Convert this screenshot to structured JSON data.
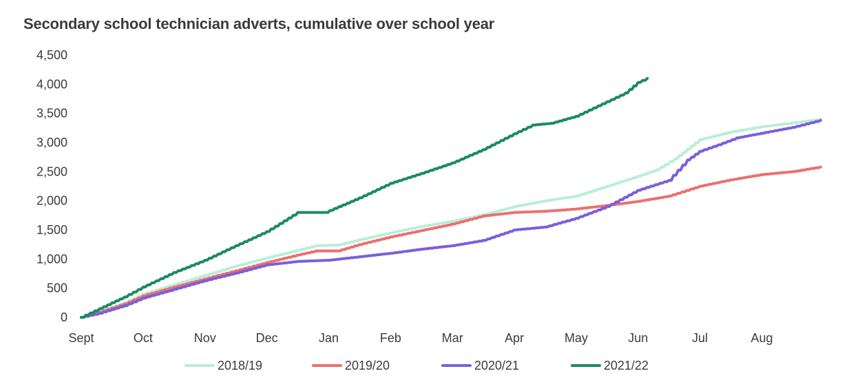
{
  "chart_data": {
    "type": "line",
    "title": "Secondary school technician adverts, cumulative over school year",
    "xlabel": "",
    "ylabel": "",
    "x_categories": [
      "Sept",
      "Oct",
      "Nov",
      "Dec",
      "Jan",
      "Feb",
      "Mar",
      "Apr",
      "May",
      "Jun",
      "Jul",
      "Aug"
    ],
    "x_tick_positions": [
      0,
      1,
      2,
      3,
      4,
      5,
      6,
      7,
      8,
      9,
      10,
      11
    ],
    "xlim": [
      0,
      11.95
    ],
    "ylim": [
      0,
      4500
    ],
    "y_ticks": [
      0,
      500,
      1000,
      1500,
      2000,
      2500,
      3000,
      3500,
      4000,
      4500
    ],
    "y_tick_labels": [
      "0",
      "500",
      "1,000",
      "1,500",
      "2,000",
      "2,500",
      "3,000",
      "3,500",
      "4,000",
      "4,500"
    ],
    "grid": false,
    "legend_position": "bottom",
    "series": [
      {
        "name": "2018/19",
        "color": "#b9eed8",
        "points": [
          [
            0,
            0
          ],
          [
            0.3,
            100
          ],
          [
            0.7,
            250
          ],
          [
            1,
            400
          ],
          [
            1.5,
            560
          ],
          [
            2,
            720
          ],
          [
            2.5,
            880
          ],
          [
            3,
            1020
          ],
          [
            3.5,
            1150
          ],
          [
            3.8,
            1230
          ],
          [
            4.15,
            1240
          ],
          [
            4.5,
            1330
          ],
          [
            5,
            1450
          ],
          [
            5.5,
            1560
          ],
          [
            6,
            1650
          ],
          [
            6.5,
            1760
          ],
          [
            7,
            1900
          ],
          [
            7.5,
            2000
          ],
          [
            8,
            2080
          ],
          [
            8.5,
            2250
          ],
          [
            9,
            2420
          ],
          [
            9.3,
            2530
          ],
          [
            9.6,
            2720
          ],
          [
            10,
            3050
          ],
          [
            10.5,
            3180
          ],
          [
            11,
            3270
          ],
          [
            11.6,
            3350
          ],
          [
            11.95,
            3400
          ]
        ]
      },
      {
        "name": "2019/20",
        "color": "#ec6f6f",
        "points": [
          [
            0,
            0
          ],
          [
            0.3,
            90
          ],
          [
            0.7,
            230
          ],
          [
            1,
            370
          ],
          [
            1.5,
            520
          ],
          [
            2,
            660
          ],
          [
            2.5,
            800
          ],
          [
            3,
            940
          ],
          [
            3.5,
            1070
          ],
          [
            3.8,
            1140
          ],
          [
            4.15,
            1140
          ],
          [
            4.5,
            1250
          ],
          [
            5,
            1380
          ],
          [
            5.5,
            1490
          ],
          [
            6,
            1600
          ],
          [
            6.5,
            1740
          ],
          [
            7,
            1800
          ],
          [
            7.5,
            1820
          ],
          [
            8,
            1860
          ],
          [
            8.5,
            1920
          ],
          [
            9,
            1990
          ],
          [
            9.5,
            2080
          ],
          [
            10,
            2250
          ],
          [
            10.5,
            2360
          ],
          [
            11,
            2450
          ],
          [
            11.5,
            2500
          ],
          [
            11.95,
            2580
          ]
        ]
      },
      {
        "name": "2020/21",
        "color": "#7a5fda",
        "points": [
          [
            0,
            0
          ],
          [
            0.3,
            70
          ],
          [
            0.7,
            200
          ],
          [
            1,
            330
          ],
          [
            1.5,
            480
          ],
          [
            2,
            630
          ],
          [
            2.5,
            760
          ],
          [
            3,
            900
          ],
          [
            3.5,
            960
          ],
          [
            4,
            980
          ],
          [
            4.5,
            1040
          ],
          [
            5,
            1100
          ],
          [
            5.5,
            1170
          ],
          [
            6,
            1230
          ],
          [
            6.5,
            1320
          ],
          [
            7,
            1500
          ],
          [
            7.5,
            1550
          ],
          [
            8,
            1700
          ],
          [
            8.5,
            1900
          ],
          [
            9,
            2180
          ],
          [
            9.5,
            2350
          ],
          [
            9.8,
            2700
          ],
          [
            10,
            2850
          ],
          [
            10.3,
            2960
          ],
          [
            10.6,
            3080
          ],
          [
            11,
            3160
          ],
          [
            11.5,
            3260
          ],
          [
            11.95,
            3380
          ]
        ]
      },
      {
        "name": "2021/22",
        "color": "#1a8b62",
        "points": [
          [
            0,
            0
          ],
          [
            0.3,
            150
          ],
          [
            0.7,
            350
          ],
          [
            1,
            520
          ],
          [
            1.5,
            770
          ],
          [
            2,
            980
          ],
          [
            2.5,
            1230
          ],
          [
            3,
            1470
          ],
          [
            3.5,
            1800
          ],
          [
            3.95,
            1800
          ],
          [
            4.1,
            1870
          ],
          [
            4.5,
            2050
          ],
          [
            5,
            2300
          ],
          [
            5.5,
            2470
          ],
          [
            6,
            2650
          ],
          [
            6.5,
            2880
          ],
          [
            7,
            3150
          ],
          [
            7.3,
            3300
          ],
          [
            7.6,
            3330
          ],
          [
            8,
            3450
          ],
          [
            8.5,
            3700
          ],
          [
            8.8,
            3850
          ],
          [
            9,
            4030
          ],
          [
            9.15,
            4100
          ]
        ]
      }
    ]
  }
}
